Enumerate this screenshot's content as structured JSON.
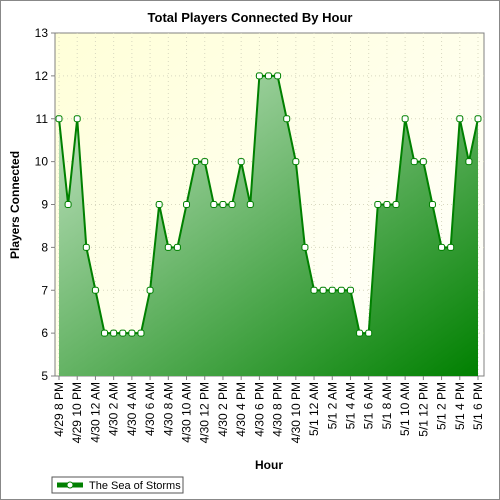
{
  "chart_data": {
    "type": "area",
    "title": "Total Players Connected By Hour",
    "xlabel": "Hour",
    "ylabel": "Players Connected",
    "ylim": [
      5,
      13
    ],
    "yticks": [
      5,
      6,
      7,
      8,
      9,
      10,
      11,
      12,
      13
    ],
    "grid": true,
    "legend_position": "bottom-left",
    "x_tick_labels": [
      "4/29 8 PM",
      "4/29 10 PM",
      "4/30 12 AM",
      "4/30 2 AM",
      "4/30 4 AM",
      "4/30 6 AM",
      "4/30 8 AM",
      "4/30 10 AM",
      "4/30 12 PM",
      "4/30 2 PM",
      "4/30 4 PM",
      "4/30 6 PM",
      "4/30 8 PM",
      "4/30 10 PM",
      "5/1 12 AM",
      "5/1 2 AM",
      "5/1 4 AM",
      "5/1 6 AM",
      "5/1 8 AM",
      "5/1 10 AM",
      "5/1 12 PM",
      "5/1 2 PM",
      "5/1 4 PM",
      "5/1 6 PM"
    ],
    "series": [
      {
        "name": "The Sea of Storms",
        "x": [
          "4/29 8 PM",
          "4/29 9 PM",
          "4/29 10 PM",
          "4/29 11 PM",
          "4/30 12 AM",
          "4/30 1 AM",
          "4/30 2 AM",
          "4/30 3 AM",
          "4/30 4 AM",
          "4/30 5 AM",
          "4/30 6 AM",
          "4/30 7 AM",
          "4/30 8 AM",
          "4/30 9 AM",
          "4/30 10 AM",
          "4/30 11 AM",
          "4/30 12 PM",
          "4/30 1 PM",
          "4/30 2 PM",
          "4/30 3 PM",
          "4/30 4 PM",
          "4/30 5 PM",
          "4/30 6 PM",
          "4/30 7 PM",
          "4/30 8 PM",
          "4/30 9 PM",
          "4/30 10 PM",
          "4/30 11 PM",
          "5/1 12 AM",
          "5/1 1 AM",
          "5/1 2 AM",
          "5/1 3 AM",
          "5/1 4 AM",
          "5/1 5 AM",
          "5/1 6 AM",
          "5/1 7 AM",
          "5/1 8 AM",
          "5/1 9 AM",
          "5/1 10 AM",
          "5/1 11 AM",
          "5/1 12 PM",
          "5/1 1 PM",
          "5/1 2 PM",
          "5/1 3 PM",
          "5/1 4 PM",
          "5/1 5 PM",
          "5/1 6 PM"
        ],
        "values": [
          11,
          9,
          11,
          8,
          7,
          6,
          6,
          6,
          6,
          6,
          7,
          9,
          8,
          8,
          9,
          10,
          10,
          9,
          9,
          9,
          10,
          9,
          12,
          12,
          12,
          11,
          10,
          8,
          7,
          7,
          7,
          7,
          7,
          6,
          6,
          9,
          9,
          9,
          11,
          10,
          10,
          9,
          8,
          8,
          11,
          10,
          11
        ],
        "line_color": "#008000",
        "fill_top_color": "#c8e6c8",
        "fill_bottom_color": "#008000",
        "marker_fill": "#ffffff"
      }
    ],
    "plot_background": "#ffffe0"
  }
}
